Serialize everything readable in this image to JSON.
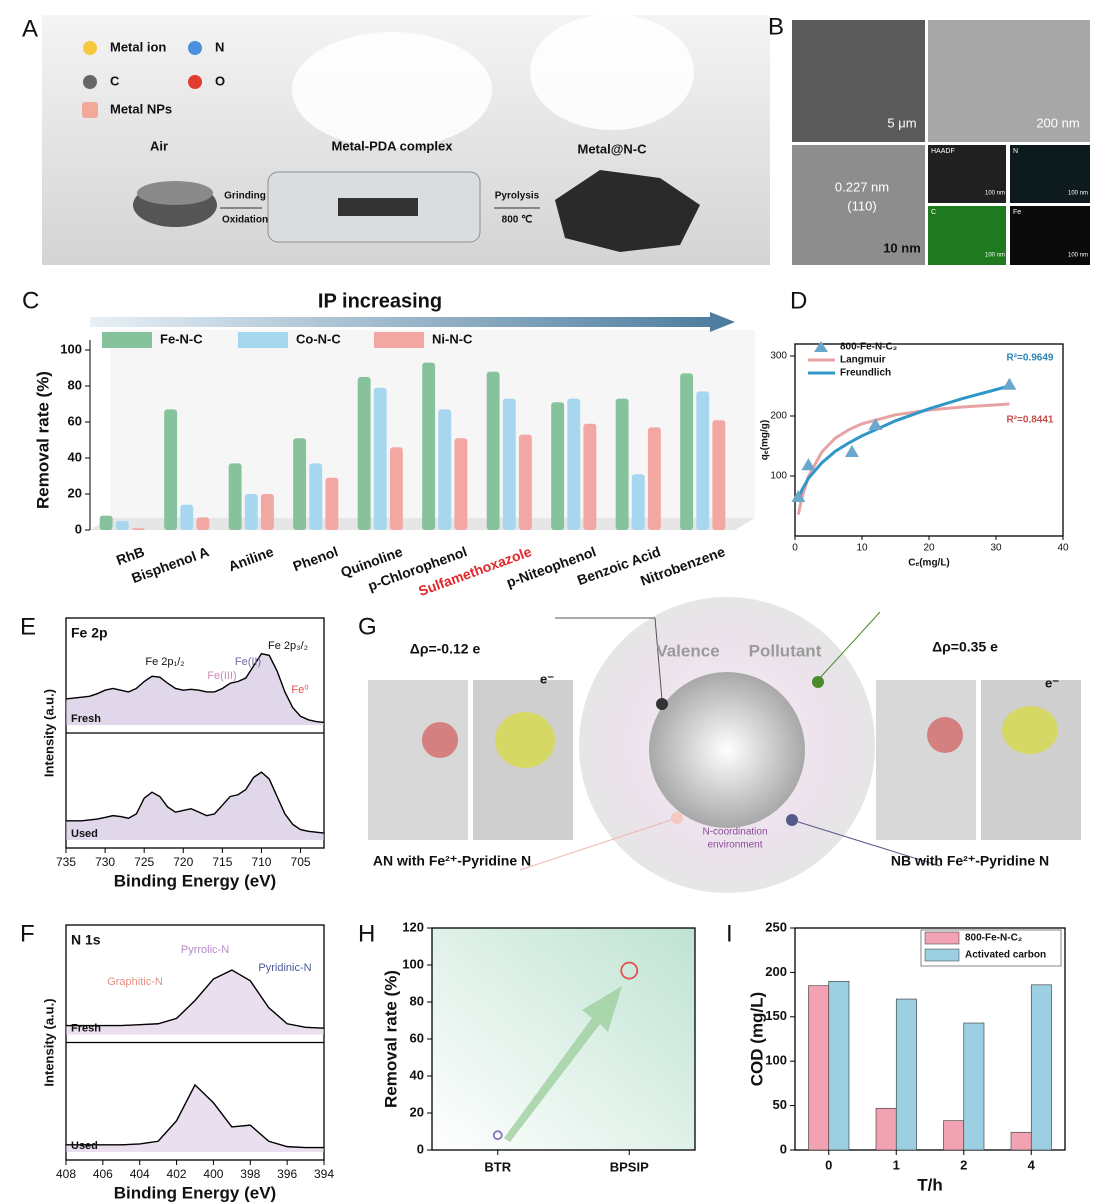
{
  "panels": {
    "A": {
      "label": "A",
      "legend": [
        "Metal ion",
        "N",
        "C",
        "O",
        "Metal NPs"
      ],
      "air": "Air",
      "complex": "Metal-PDA complex",
      "product": "Metal@N-C",
      "step1": [
        "Grinding",
        "Oxidation"
      ],
      "step2": [
        "Pyrolysis",
        "800 ℃"
      ]
    },
    "B": {
      "label": "B",
      "scale_bars": [
        "5 μm",
        "200 nm",
        "10 nm"
      ],
      "lattice": [
        "0.227 nm",
        "(110)"
      ],
      "maps": [
        "HAADF",
        "N",
        "C",
        "Fe"
      ],
      "map_scale": "100 nm"
    },
    "G": {
      "label": "G",
      "left_charge": "Δρ=-0.12 e",
      "right_charge": "Δρ=0.35 e",
      "valence": "Valence",
      "pollutant": "Pollutant",
      "electron": "e⁻",
      "environment": [
        "N-coordination",
        "environment"
      ],
      "left_caption": "AN with Fe²⁺-Pyridine N",
      "right_caption": "NB with Fe²⁺-Pyridine N"
    }
  },
  "chart_data": [
    {
      "panel": "C",
      "type": "bar",
      "banner": "IP increasing",
      "ylabel": "Removal rate (%)",
      "categories": [
        "RhB",
        "Bisphenol A",
        "Aniline",
        "Phenol",
        "Quinoline",
        "p-Chlorophenol",
        "Sulfamethoxazole",
        "p-Niteophenol",
        "Benzoic Acid",
        "Nitrobenzene"
      ],
      "category_colors": [
        "#111111",
        "#111111",
        "#111111",
        "#111111",
        "#111111",
        "#111111",
        "#e3262b",
        "#111111",
        "#111111",
        "#111111"
      ],
      "series": [
        {
          "name": "Fe-N-C",
          "color": "#86c29c",
          "values": [
            8,
            67,
            37,
            51,
            85,
            93,
            88,
            71,
            73,
            87
          ]
        },
        {
          "name": "Co-N-C",
          "color": "#a6d7ef",
          "values": [
            5,
            14,
            20,
            37,
            79,
            67,
            73,
            73,
            31,
            77
          ]
        },
        {
          "name": "Ni-N-C",
          "color": "#f2a7a3",
          "values": [
            1,
            7,
            20,
            29,
            46,
            51,
            53,
            59,
            57,
            61
          ]
        }
      ],
      "ylim": [
        0,
        100
      ],
      "yticks": [
        0,
        20,
        40,
        60,
        80,
        100
      ]
    },
    {
      "panel": "D",
      "type": "scatter",
      "xlabel": "Cₑ(mg/L)",
      "ylabel": "qₑ(mg/g)",
      "points": {
        "name": "800-Fe-N-C₂",
        "color": "#6aa7cc",
        "x": [
          0.5,
          2,
          8.5,
          12,
          32
        ],
        "values": [
          65,
          118,
          140,
          185,
          252
        ]
      },
      "series": [
        {
          "name": "Langmuir",
          "color": "#e7a3a3",
          "x": [
            0.5,
            1,
            2,
            4,
            6,
            8,
            10,
            15,
            20,
            25,
            32
          ],
          "values": [
            36,
            62,
            99,
            140,
            163,
            177,
            187,
            202,
            210,
            215,
            220
          ]
        },
        {
          "name": "Freundlich",
          "color": "#2f97c8",
          "x": [
            0.5,
            1,
            2,
            4,
            6,
            8,
            10,
            15,
            20,
            25,
            32
          ],
          "values": [
            60,
            76,
            96,
            122,
            141,
            155,
            167,
            192,
            212,
            229,
            250
          ]
        }
      ],
      "annotations": [
        "R²=0.9649",
        "R²=0.8441"
      ],
      "annotation_colors": [
        "#2f83b6",
        "#c0504d"
      ],
      "xlim": [
        0,
        40
      ],
      "xticks": [
        0,
        10,
        20,
        30,
        40
      ],
      "ylim": [
        0,
        320
      ],
      "yticks": [
        100,
        200,
        300
      ]
    },
    {
      "panel": "E",
      "type": "xps",
      "title": "Fe 2p",
      "xlabel": "Binding Energy (eV)",
      "ylabel": "Intensity (a.u.)",
      "annotations": [
        "Fe 2p₁/₂",
        "Fe(III)",
        "Fe(II)",
        "Fe 2p₃/₂",
        "Fe⁰"
      ],
      "annotation_colors": [
        "#111111",
        "#c98bb8",
        "#6e6aa8",
        "#111111",
        "#e0504a"
      ],
      "x": [
        735,
        734,
        733,
        732,
        731,
        730,
        729,
        728,
        727,
        726,
        725,
        724,
        723,
        722,
        721,
        720,
        719,
        718,
        717,
        716,
        715,
        714,
        713,
        712,
        711,
        710,
        709,
        708,
        707,
        706,
        705,
        704,
        703,
        702
      ],
      "series": [
        {
          "name": "Fresh",
          "values": [
            30,
            31,
            32,
            33,
            36,
            40,
            42,
            40,
            38,
            42,
            50,
            56,
            55,
            48,
            42,
            40,
            41,
            40,
            38,
            38,
            42,
            48,
            50,
            54,
            68,
            82,
            80,
            62,
            38,
            20,
            10,
            6,
            4,
            3
          ]
        },
        {
          "name": "Used",
          "values": [
            22,
            22,
            22,
            23,
            24,
            26,
            28,
            27,
            25,
            30,
            48,
            55,
            50,
            38,
            32,
            34,
            36,
            32,
            28,
            30,
            40,
            50,
            52,
            58,
            72,
            78,
            70,
            50,
            30,
            18,
            12,
            10,
            9,
            8
          ]
        }
      ],
      "color": "#c6b8d8",
      "xlim": [
        735,
        702
      ],
      "xticks": [
        735,
        730,
        725,
        720,
        715,
        710,
        705
      ]
    },
    {
      "panel": "F",
      "type": "xps",
      "title": "N 1s",
      "xlabel": "Binding Energy (eV)",
      "ylabel": "Intensity (a.u.)",
      "annotations": [
        "Graphitic-N",
        "Pyrrolic-N",
        "Pyridinic-N"
      ],
      "annotation_colors": [
        "#e59080",
        "#b48ac8",
        "#4c5a96"
      ],
      "x": [
        408,
        407,
        406,
        405,
        404,
        403,
        402,
        401,
        400,
        399,
        398,
        397,
        396,
        395,
        394
      ],
      "series": [
        {
          "name": "Fresh",
          "values": [
            10,
            10,
            10,
            10,
            11,
            12,
            18,
            38,
            62,
            72,
            60,
            30,
            12,
            8,
            7
          ]
        },
        {
          "name": "Used",
          "values": [
            8,
            8,
            8,
            8,
            9,
            12,
            35,
            75,
            55,
            28,
            30,
            12,
            6,
            5,
            5
          ]
        }
      ],
      "color": "#d8c4e0",
      "xlim": [
        408,
        394
      ],
      "xticks": [
        408,
        406,
        404,
        402,
        400,
        398,
        396,
        394
      ]
    },
    {
      "panel": "H",
      "type": "dot",
      "ylabel": "Removal rate (%)",
      "categories": [
        "BTR",
        "BPSIP"
      ],
      "values": [
        8,
        97
      ],
      "colors": [
        "#8a6fc0",
        "#e25252"
      ],
      "ylim": [
        0,
        120
      ],
      "yticks": [
        0,
        20,
        40,
        60,
        80,
        100,
        120
      ]
    },
    {
      "panel": "I",
      "type": "bar",
      "xlabel": "T/h",
      "ylabel": "COD (mg/L)",
      "categories": [
        "0",
        "1",
        "2",
        "4"
      ],
      "series": [
        {
          "name": "800-Fe-N-C₂",
          "color": "#f1a3b3",
          "values": [
            185,
            47,
            33,
            20
          ]
        },
        {
          "name": "Activated carbon",
          "color": "#9ccfe2",
          "values": [
            190,
            170,
            143,
            186
          ]
        }
      ],
      "ylim": [
        0,
        250
      ],
      "yticks": [
        0,
        50,
        100,
        150,
        200,
        250
      ],
      "legend": "upper right"
    }
  ]
}
